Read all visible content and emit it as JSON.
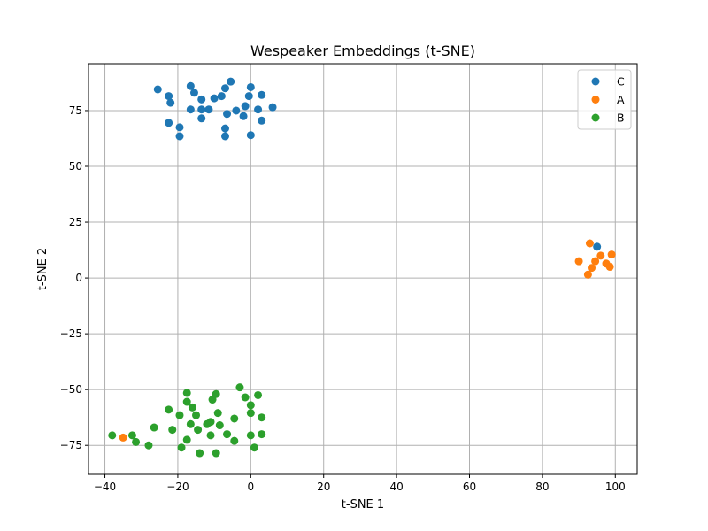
{
  "chart_data": {
    "type": "scatter",
    "title": "Wespeaker Embeddings (t-SNE)",
    "xlabel": "t-SNE 1",
    "ylabel": "t-SNE 2",
    "xlim": [
      -44.5,
      106
    ],
    "ylim": [
      -88,
      96
    ],
    "xticks": [
      -40,
      -20,
      0,
      20,
      40,
      60,
      80,
      100
    ],
    "yticks": [
      -75,
      -50,
      -25,
      0,
      25,
      50,
      75
    ],
    "grid": true,
    "legend_position": "top-right",
    "series": [
      {
        "name": "C",
        "color": "#1f77b4",
        "points": [
          [
            -25.5,
            84.5
          ],
          [
            -22.5,
            81.5
          ],
          [
            -22.0,
            78.5
          ],
          [
            -16.5,
            86.0
          ],
          [
            -15.5,
            83.0
          ],
          [
            -13.5,
            80.0
          ],
          [
            -10.0,
            80.5
          ],
          [
            -8.0,
            81.5
          ],
          [
            -7.0,
            85.0
          ],
          [
            -5.5,
            88.0
          ],
          [
            -0.5,
            81.5
          ],
          [
            0.0,
            85.5
          ],
          [
            3.0,
            82.0
          ],
          [
            -16.5,
            75.5
          ],
          [
            -13.5,
            75.5
          ],
          [
            -11.5,
            75.5
          ],
          [
            -6.5,
            73.5
          ],
          [
            -4.0,
            75.0
          ],
          [
            -1.5,
            77.0
          ],
          [
            2.0,
            75.5
          ],
          [
            6.0,
            76.5
          ],
          [
            -13.5,
            71.5
          ],
          [
            -22.5,
            69.5
          ],
          [
            -2.0,
            72.5
          ],
          [
            3.0,
            70.5
          ],
          [
            -19.5,
            67.5
          ],
          [
            -19.5,
            63.5
          ],
          [
            -7.0,
            67.0
          ],
          [
            -7.0,
            63.5
          ],
          [
            0.0,
            64.0
          ],
          [
            95.0,
            14.0
          ]
        ]
      },
      {
        "name": "A",
        "color": "#ff7f0e",
        "points": [
          [
            93.0,
            15.5
          ],
          [
            96.0,
            10.0
          ],
          [
            99.0,
            10.5
          ],
          [
            90.0,
            7.5
          ],
          [
            94.5,
            7.5
          ],
          [
            97.5,
            6.5
          ],
          [
            93.5,
            4.5
          ],
          [
            98.5,
            5.0
          ],
          [
            92.5,
            1.5
          ],
          [
            -35.0,
            -71.5
          ]
        ]
      },
      {
        "name": "B",
        "color": "#2ca02c",
        "points": [
          [
            -3.0,
            -49.0
          ],
          [
            -17.5,
            -51.5
          ],
          [
            -9.5,
            -52.0
          ],
          [
            2.0,
            -52.5
          ],
          [
            -1.5,
            -53.5
          ],
          [
            -10.5,
            -54.5
          ],
          [
            -17.5,
            -55.5
          ],
          [
            0.0,
            -57.0
          ],
          [
            -16.0,
            -58.0
          ],
          [
            -22.5,
            -59.0
          ],
          [
            -19.5,
            -61.5
          ],
          [
            -15.0,
            -61.5
          ],
          [
            -9.0,
            -60.5
          ],
          [
            0.0,
            -60.5
          ],
          [
            3.0,
            -62.5
          ],
          [
            -4.5,
            -63.0
          ],
          [
            -11.0,
            -64.5
          ],
          [
            -16.5,
            -65.5
          ],
          [
            -12.0,
            -65.5
          ],
          [
            -8.5,
            -66.0
          ],
          [
            -26.5,
            -67.0
          ],
          [
            -21.5,
            -68.0
          ],
          [
            -14.5,
            -68.0
          ],
          [
            -6.5,
            -70.0
          ],
          [
            -11.0,
            -70.5
          ],
          [
            0.0,
            -70.5
          ],
          [
            3.0,
            -70.0
          ],
          [
            -38.0,
            -70.5
          ],
          [
            -32.5,
            -70.5
          ],
          [
            -17.5,
            -72.5
          ],
          [
            -31.5,
            -73.5
          ],
          [
            -4.5,
            -73.0
          ],
          [
            -28.0,
            -75.0
          ],
          [
            -19.0,
            -76.0
          ],
          [
            1.0,
            -76.0
          ],
          [
            -14.0,
            -78.5
          ],
          [
            -9.5,
            -78.5
          ]
        ]
      }
    ]
  }
}
